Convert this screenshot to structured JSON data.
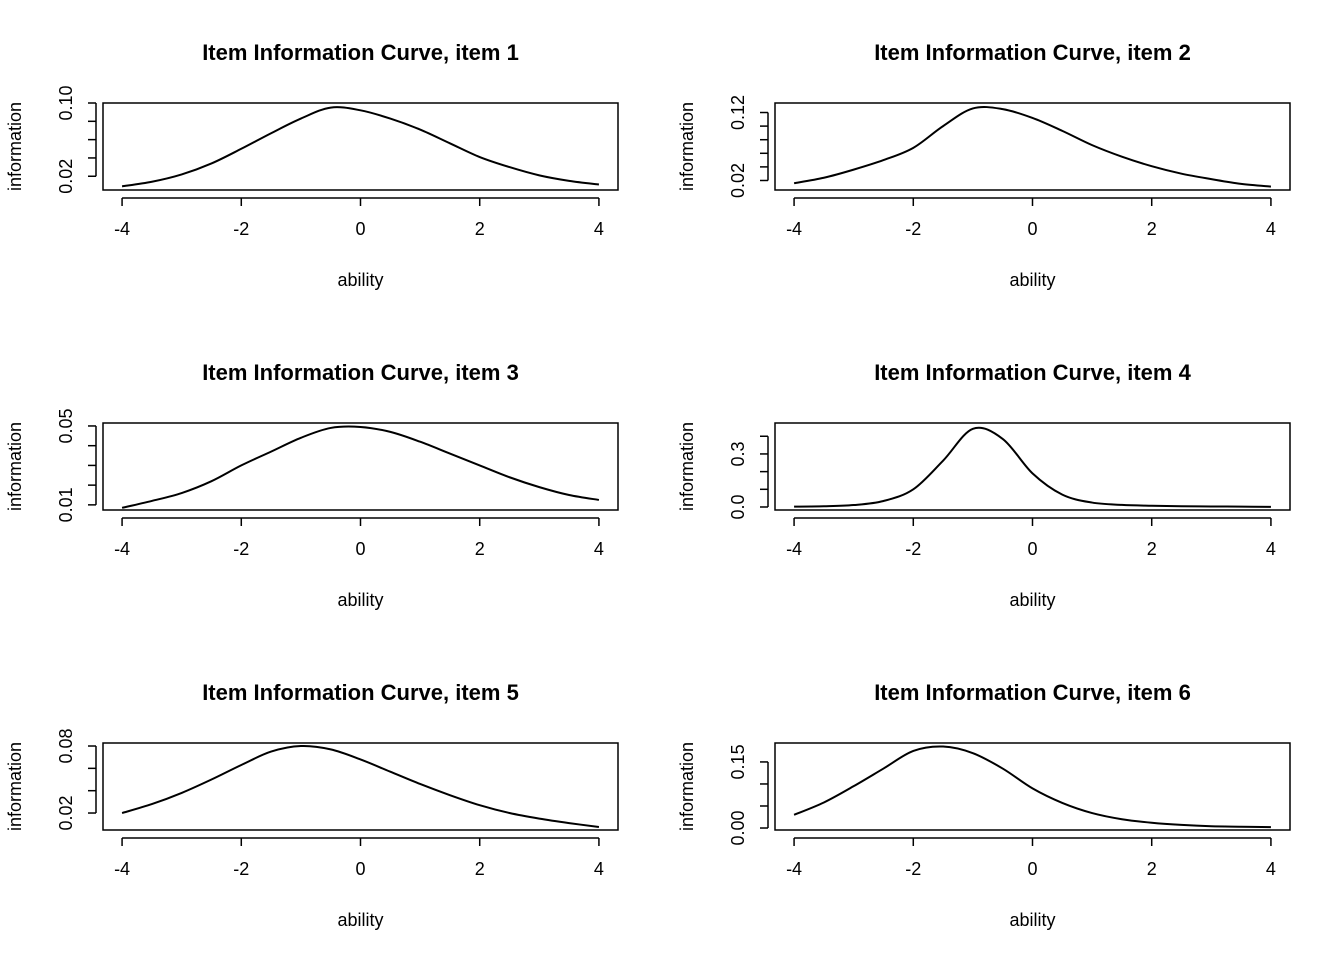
{
  "chart_data": [
    {
      "type": "line",
      "title": "Item Information Curve, item 1",
      "xlabel": "ability",
      "ylabel": "information",
      "x": [
        -4,
        -3.5,
        -3,
        -2.5,
        -2,
        -1.5,
        -1,
        -0.5,
        0,
        0.5,
        1,
        1.5,
        2,
        2.5,
        3,
        3.5,
        4
      ],
      "values": [
        0.009,
        0.014,
        0.022,
        0.034,
        0.05,
        0.067,
        0.083,
        0.095,
        0.092,
        0.083,
        0.071,
        0.056,
        0.041,
        0.03,
        0.021,
        0.015,
        0.011
      ],
      "color": "#000000",
      "xlim": [
        -4.32,
        4.32
      ],
      "xticks": [
        -4,
        -2,
        0,
        2,
        4
      ],
      "ylim": [
        0.005,
        0.1
      ],
      "yticks": [
        0.02,
        {
          "value": 0.1,
          "label": "0.10"
        }
      ],
      "yticks_minor": [
        0.04,
        0.06,
        0.08
      ]
    },
    {
      "type": "line",
      "title": "Item Information Curve, item 2",
      "xlabel": "ability",
      "ylabel": "information",
      "x": [
        -4,
        -3.5,
        -3,
        -2.5,
        -2,
        -1.5,
        -1,
        -0.5,
        0,
        0.5,
        1,
        1.5,
        2,
        2.5,
        3,
        3.5,
        4
      ],
      "values": [
        0.016,
        0.024,
        0.036,
        0.05,
        0.068,
        0.1,
        0.126,
        0.125,
        0.112,
        0.093,
        0.072,
        0.055,
        0.041,
        0.03,
        0.022,
        0.015,
        0.011
      ],
      "color": "#000000",
      "xlim": [
        -4.32,
        4.32
      ],
      "xticks": [
        -4,
        -2,
        0,
        2,
        4
      ],
      "ylim": [
        0.006,
        0.134
      ],
      "yticks": [
        0.02,
        0.12
      ],
      "yticks_minor": [
        0.04,
        0.06,
        0.08,
        0.1
      ]
    },
    {
      "type": "line",
      "title": "Item Information Curve, item 3",
      "xlabel": "ability",
      "ylabel": "information",
      "x": [
        -4,
        -3.5,
        -3,
        -2.5,
        -2,
        -1.5,
        -1,
        -0.5,
        0,
        0.5,
        1,
        1.5,
        2,
        2.5,
        3,
        3.5,
        4
      ],
      "values": [
        0.0085,
        0.012,
        0.016,
        0.022,
        0.03,
        0.037,
        0.044,
        0.049,
        0.0495,
        0.047,
        0.042,
        0.036,
        0.03,
        0.024,
        0.019,
        0.015,
        0.0125
      ],
      "color": "#000000",
      "xlim": [
        -4.32,
        4.32
      ],
      "xticks": [
        -4,
        -2,
        0,
        2,
        4
      ],
      "ylim": [
        0.0074,
        0.0515
      ],
      "yticks": [
        0.01,
        0.05
      ],
      "yticks_minor": [
        0.02,
        0.03,
        0.04
      ]
    },
    {
      "type": "line",
      "title": "Item Information Curve, item 4",
      "xlabel": "ability",
      "ylabel": "information",
      "x": [
        -4,
        -3.5,
        -3,
        -2.5,
        -2,
        -1.5,
        -1,
        -0.5,
        0,
        0.5,
        1,
        1.5,
        2,
        2.5,
        3,
        3.5,
        4
      ],
      "values": [
        0.002,
        0.004,
        0.011,
        0.034,
        0.1,
        0.262,
        0.442,
        0.385,
        0.19,
        0.07,
        0.025,
        0.012,
        0.007,
        0.004,
        0.003,
        0.002,
        0.001
      ],
      "color": "#000000",
      "xlim": [
        -4.32,
        4.32
      ],
      "xticks": [
        -4,
        -2,
        0,
        2,
        4
      ],
      "ylim": [
        -0.017,
        0.475
      ],
      "yticks": [
        {
          "value": 0,
          "label": "0.0"
        },
        0.3
      ],
      "yticks_minor": [
        0.1,
        0.2,
        0.4
      ]
    },
    {
      "type": "line",
      "title": "Item Information Curve, item 5",
      "xlabel": "ability",
      "ylabel": "information",
      "x": [
        -4,
        -3.5,
        -3,
        -2.5,
        -2,
        -1.5,
        -1,
        -0.5,
        0,
        0.5,
        1,
        1.5,
        2,
        2.5,
        3,
        3.5,
        4
      ],
      "values": [
        0.02,
        0.028,
        0.038,
        0.05,
        0.063,
        0.075,
        0.08,
        0.077,
        0.068,
        0.057,
        0.046,
        0.036,
        0.027,
        0.02,
        0.015,
        0.011,
        0.0075
      ],
      "color": "#000000",
      "xlim": [
        -4.32,
        4.32
      ],
      "xticks": [
        -4,
        -2,
        0,
        2,
        4
      ],
      "ylim": [
        0.0048,
        0.0827
      ],
      "yticks": [
        0.02,
        0.08
      ],
      "yticks_minor": [
        0.04,
        0.06
      ]
    },
    {
      "type": "line",
      "title": "Item Information Curve, item 6",
      "xlabel": "ability",
      "ylabel": "information",
      "x": [
        -4,
        -3.5,
        -3,
        -2.5,
        -2,
        -1.5,
        -1,
        -0.5,
        0,
        0.5,
        1,
        1.5,
        2,
        2.5,
        3,
        3.5,
        4
      ],
      "values": [
        0.03,
        0.058,
        0.095,
        0.135,
        0.175,
        0.185,
        0.17,
        0.135,
        0.09,
        0.057,
        0.034,
        0.02,
        0.012,
        0.007,
        0.004,
        0.003,
        0.002
      ],
      "color": "#000000",
      "xlim": [
        -4.32,
        4.32
      ],
      "xticks": [
        -4,
        -2,
        0,
        2,
        4
      ],
      "ylim": [
        -0.0045,
        0.193
      ],
      "yticks": [
        {
          "value": 0,
          "label": "0.00"
        },
        0.15
      ],
      "yticks_minor": [
        0.05,
        0.1
      ]
    }
  ]
}
